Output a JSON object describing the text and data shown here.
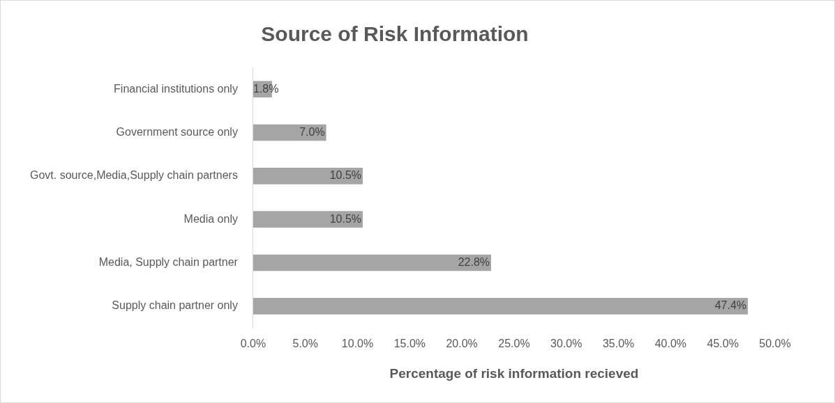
{
  "chart_data": {
    "type": "bar",
    "orientation": "horizontal",
    "title": "Source of Risk Information",
    "xlabel": "Percentage of risk information recieved",
    "categories": [
      "Financial institutions only",
      "Government source only",
      "Govt. source,Media,Supply chain partners",
      "Media only",
      "Media, Supply chain partner",
      "Supply chain partner only"
    ],
    "values": [
      1.8,
      7.0,
      10.5,
      10.5,
      22.8,
      47.4
    ],
    "value_labels": [
      "1.8%",
      "7.0%",
      "10.5%",
      "10.5%",
      "22.8%",
      "47.4%"
    ],
    "color": "#a5a5a5",
    "xlim": [
      0,
      50
    ],
    "xticks": [
      {
        "value": 0,
        "label": "0.0%"
      },
      {
        "value": 5,
        "label": "5.0%"
      },
      {
        "value": 10,
        "label": "10.0%"
      },
      {
        "value": 15,
        "label": "15.0%"
      },
      {
        "value": 20,
        "label": "20.0%"
      },
      {
        "value": 25,
        "label": "25.0%"
      },
      {
        "value": 30,
        "label": "30.0%"
      },
      {
        "value": 35,
        "label": "35.0%"
      },
      {
        "value": 40,
        "label": "40.0%"
      },
      {
        "value": 45,
        "label": "45.0%"
      },
      {
        "value": 50,
        "label": "50.0%"
      }
    ],
    "grid": false,
    "legend": false
  }
}
